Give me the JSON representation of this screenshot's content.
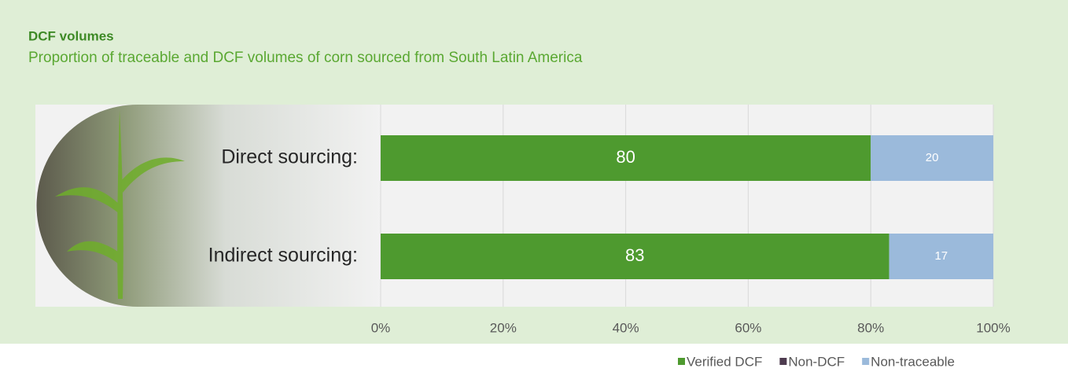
{
  "chart_data": {
    "type": "stacked-bar-horizontal",
    "title": "DCF volumes",
    "subtitle": "Proportion of traceable and DCF volumes of corn sourced from South Latin America",
    "categories": [
      "Direct sourcing:",
      "Indirect sourcing:"
    ],
    "series": [
      {
        "name": "Verified DCF",
        "color": "#4e9a2f",
        "values": [
          80,
          83
        ]
      },
      {
        "name": "Non-DCF",
        "color": "#4d3b4f",
        "values": [
          0,
          0
        ]
      },
      {
        "name": "Non-traceable",
        "color": "#9bbadb",
        "values": [
          20,
          17
        ]
      }
    ],
    "xlim": [
      0,
      100
    ],
    "xticks": [
      {
        "value": 0,
        "label": "0%"
      },
      {
        "value": 20,
        "label": "20%"
      },
      {
        "value": 40,
        "label": "40%"
      },
      {
        "value": 60,
        "label": "60%"
      },
      {
        "value": 80,
        "label": "80%"
      },
      {
        "value": 100,
        "label": "100%"
      }
    ],
    "grid": true
  }
}
